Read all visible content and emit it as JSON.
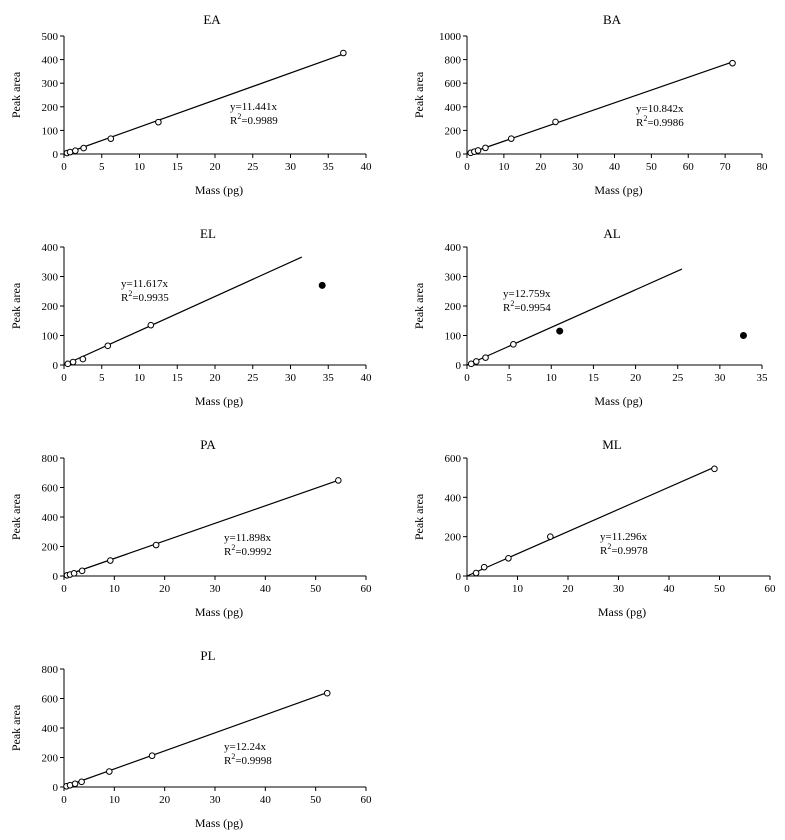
{
  "chart_data": [
    {
      "type": "scatter",
      "title": "EA",
      "xlabel": "Mass (pg)",
      "ylabel": "Peak area",
      "xlim": [
        0,
        40
      ],
      "ylim": [
        0,
        500
      ],
      "xticks": [
        0,
        5,
        10,
        15,
        20,
        25,
        30,
        35,
        40
      ],
      "yticks": [
        0,
        100,
        200,
        300,
        400,
        500
      ],
      "points": [
        [
          0.4,
          4
        ],
        [
          0.8,
          8
        ],
        [
          1.5,
          14
        ],
        [
          2.6,
          25
        ],
        [
          6.2,
          65
        ],
        [
          12.5,
          135
        ],
        [
          37,
          428
        ]
      ],
      "outliers": [],
      "fit_slope": 11.441,
      "fit_x_end": 37,
      "equation": "y=11.441x",
      "r2_prefix": "R",
      "r2_sup": "2",
      "r2_value": "=0.9989"
    },
    {
      "type": "scatter",
      "title": "BA",
      "xlabel": "Mass (pg)",
      "ylabel": "Peak area",
      "xlim": [
        0,
        80
      ],
      "ylim": [
        0,
        1000
      ],
      "xticks": [
        0,
        10,
        20,
        30,
        40,
        50,
        60,
        70,
        80
      ],
      "yticks": [
        0,
        200,
        400,
        600,
        800,
        1000
      ],
      "points": [
        [
          1,
          10
        ],
        [
          2,
          20
        ],
        [
          3,
          30
        ],
        [
          5,
          52
        ],
        [
          12,
          130
        ],
        [
          24,
          272
        ],
        [
          72,
          770
        ]
      ],
      "outliers": [],
      "fit_slope": 10.842,
      "fit_x_end": 72,
      "equation": "y=10.842x",
      "r2_prefix": "R",
      "r2_sup": "2",
      "r2_value": "=0.9986"
    },
    {
      "type": "scatter",
      "title": "EL",
      "xlabel": "Mass (pg)",
      "ylabel": "Peak area",
      "xlim": [
        0,
        40
      ],
      "ylim": [
        0,
        400
      ],
      "xticks": [
        0,
        5,
        10,
        15,
        20,
        25,
        30,
        35,
        40
      ],
      "yticks": [
        0,
        100,
        200,
        300,
        400
      ],
      "points": [
        [
          0.5,
          4
        ],
        [
          1.2,
          10
        ],
        [
          2.5,
          20
        ],
        [
          5.8,
          65
        ],
        [
          11.5,
          135
        ]
      ],
      "outliers": [
        [
          34.2,
          270
        ]
      ],
      "fit_slope": 11.617,
      "fit_x_end": 31.5,
      "equation": "y=11.617x",
      "r2_prefix": "R",
      "r2_sup": "2",
      "r2_value": "=0.9935"
    },
    {
      "type": "scatter",
      "title": "AL",
      "xlabel": "Mass (pg)",
      "ylabel": "Peak area",
      "xlim": [
        0,
        35
      ],
      "ylim": [
        0,
        400
      ],
      "xticks": [
        0,
        5,
        10,
        15,
        20,
        25,
        30,
        35
      ],
      "yticks": [
        0,
        100,
        200,
        300,
        400
      ],
      "points": [
        [
          0.5,
          4
        ],
        [
          1.1,
          12
        ],
        [
          2.2,
          25
        ],
        [
          5.5,
          70
        ]
      ],
      "outliers": [
        [
          11,
          115
        ],
        [
          32.8,
          100
        ]
      ],
      "fit_slope": 12.759,
      "fit_x_end": 25.5,
      "equation": "y=12.759x",
      "r2_prefix": "R",
      "r2_sup": "2",
      "r2_value": "=0.9954"
    },
    {
      "type": "scatter",
      "title": "PA",
      "xlabel": "Mass (pg)",
      "ylabel": "Peak area",
      "xlim": [
        0,
        60
      ],
      "ylim": [
        0,
        800
      ],
      "xticks": [
        0,
        10,
        20,
        30,
        40,
        50,
        60
      ],
      "yticks": [
        0,
        200,
        400,
        600,
        800
      ],
      "points": [
        [
          0.6,
          5
        ],
        [
          1.2,
          10
        ],
        [
          2,
          18
        ],
        [
          3.6,
          35
        ],
        [
          9.2,
          105
        ],
        [
          18.3,
          210
        ],
        [
          54.5,
          648
        ]
      ],
      "outliers": [],
      "fit_slope": 11.898,
      "fit_x_end": 54.5,
      "equation": "y=11.898x",
      "r2_prefix": "R",
      "r2_sup": "2",
      "r2_value": "=0.9992"
    },
    {
      "type": "scatter",
      "title": "ML",
      "xlabel": "Mass (pg)",
      "ylabel": "Peak area",
      "xlim": [
        0,
        60
      ],
      "ylim": [
        0,
        600
      ],
      "xticks": [
        0,
        10,
        20,
        30,
        40,
        50,
        60
      ],
      "yticks": [
        0,
        200,
        400,
        600
      ],
      "points": [
        [
          1.8,
          15
        ],
        [
          3.4,
          45
        ],
        [
          8.2,
          90
        ],
        [
          16.5,
          200
        ],
        [
          49,
          545
        ]
      ],
      "outliers": [],
      "fit_slope": 11.296,
      "fit_x_end": 49,
      "equation": "y=11.296x",
      "r2_prefix": "R",
      "r2_sup": "2",
      "r2_value": "=0.9978"
    },
    {
      "type": "scatter",
      "title": "PL",
      "xlabel": "Mass (pg)",
      "ylabel": "Peak area",
      "xlim": [
        0,
        60
      ],
      "ylim": [
        0,
        800
      ],
      "xticks": [
        0,
        10,
        20,
        30,
        40,
        50,
        60
      ],
      "yticks": [
        0,
        200,
        400,
        600,
        800
      ],
      "points": [
        [
          0.5,
          5
        ],
        [
          1.2,
          12
        ],
        [
          2.2,
          22
        ],
        [
          3.5,
          35
        ],
        [
          9,
          105
        ],
        [
          17.5,
          212
        ],
        [
          52.3,
          636
        ]
      ],
      "outliers": [],
      "fit_slope": 12.24,
      "fit_x_end": 52.3,
      "equation": "y=12.24x",
      "r2_prefix": "R",
      "r2_sup": "2",
      "r2_value": "=0.9998"
    }
  ]
}
